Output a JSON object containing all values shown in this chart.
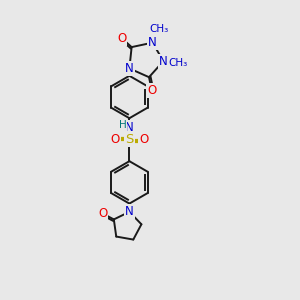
{
  "bg_color": "#e8e8e8",
  "bond_color": "#1a1a1a",
  "atom_colors": {
    "N": "#0000cc",
    "O": "#ee0000",
    "S": "#bbaa00",
    "H": "#007777",
    "C": "#1a1a1a"
  },
  "font_size": 8.5,
  "figsize": [
    3.0,
    3.0
  ],
  "dpi": 100
}
